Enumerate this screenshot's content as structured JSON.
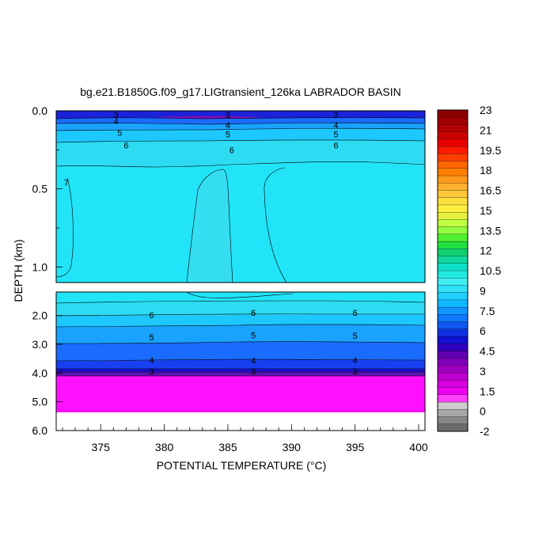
{
  "chart_data": {
    "type": "contour",
    "title": "bg.e21.B1850G.f09_g17.LIGtransient_126ka LABRADOR BASIN",
    "xlabel": "POTENTIAL TEMPERATURE (°C)",
    "ylabel": "DEPTH (km)",
    "xlim": [
      371.5,
      400.5
    ],
    "x_ticks": [
      "375",
      "380",
      "385",
      "390",
      "395",
      "400"
    ],
    "upper_panel": {
      "ylim": [
        0.0,
        1.1
      ],
      "y_ticks": [
        "0.0",
        "0.5",
        "1.0"
      ]
    },
    "lower_panel": {
      "ylim": [
        1.1,
        6.0
      ],
      "y_ticks": [
        "2.0",
        "3.0",
        "4.0",
        "5.0",
        "6.0"
      ]
    },
    "colorbar": {
      "labels": [
        "23",
        "21",
        "19.5",
        "18",
        "16.5",
        "15",
        "13.5",
        "12",
        "10.5",
        "9",
        "7.5",
        "6",
        "4.5",
        "3",
        "1.5",
        "0",
        "-2"
      ],
      "colors": [
        "#8b0000",
        "#a00000",
        "#b40000",
        "#cc0000",
        "#e60000",
        "#ff1a00",
        "#ff4000",
        "#ff6600",
        "#ff8000",
        "#ff9a1a",
        "#ffb030",
        "#ffc838",
        "#ffe040",
        "#fff040",
        "#e8f040",
        "#c0ff40",
        "#90ff40",
        "#50f030",
        "#20e040",
        "#10d070",
        "#10d8a0",
        "#10e0c8",
        "#20e8e0",
        "#40eef0",
        "#30e0f8",
        "#20d0ff",
        "#10b8ff",
        "#1098ff",
        "#1078ff",
        "#1058f0",
        "#1030e0",
        "#1010d0",
        "#3000c0",
        "#6000b0",
        "#8000b8",
        "#a000c0",
        "#c000d0",
        "#d800e0",
        "#f000f0",
        "#ff40ff",
        "#cccccc",
        "#a8a8a8",
        "#888888",
        "#6c6c6c"
      ]
    },
    "contour_labels_upper": [
      {
        "text": "3",
        "x": 376.2,
        "d": 0.025
      },
      {
        "text": "4",
        "x": 376.2,
        "d": 0.065
      },
      {
        "text": "5",
        "x": 376.5,
        "d": 0.14
      },
      {
        "text": "6",
        "x": 377.0,
        "d": 0.22
      },
      {
        "text": "7",
        "x": 372.3,
        "d": 0.46
      },
      {
        "text": "3",
        "x": 385.0,
        "d": 0.025
      },
      {
        "text": "4",
        "x": 385.0,
        "d": 0.09
      },
      {
        "text": "5",
        "x": 385.0,
        "d": 0.15
      },
      {
        "text": "6",
        "x": 385.3,
        "d": 0.25
      },
      {
        "text": "3",
        "x": 393.5,
        "d": 0.025
      },
      {
        "text": "4",
        "x": 393.5,
        "d": 0.09
      },
      {
        "text": "5",
        "x": 393.5,
        "d": 0.15
      },
      {
        "text": "6",
        "x": 393.5,
        "d": 0.22
      }
    ],
    "contour_labels_lower": [
      {
        "text": "6",
        "x": 379.0,
        "d": 1.98
      },
      {
        "text": "5",
        "x": 379.0,
        "d": 2.75
      },
      {
        "text": "4",
        "x": 379.0,
        "d": 3.55
      },
      {
        "text": "3",
        "x": 379.0,
        "d": 3.93
      },
      {
        "text": "6",
        "x": 387.0,
        "d": 1.9
      },
      {
        "text": "5",
        "x": 387.0,
        "d": 2.68
      },
      {
        "text": "4",
        "x": 387.0,
        "d": 3.57
      },
      {
        "text": "3",
        "x": 387.0,
        "d": 3.93
      },
      {
        "text": "6",
        "x": 395.0,
        "d": 1.9
      },
      {
        "text": "5",
        "x": 395.0,
        "d": 2.7
      },
      {
        "text": "4",
        "x": 395.0,
        "d": 3.55
      },
      {
        "text": "3",
        "x": 395.0,
        "d": 3.93
      }
    ]
  }
}
